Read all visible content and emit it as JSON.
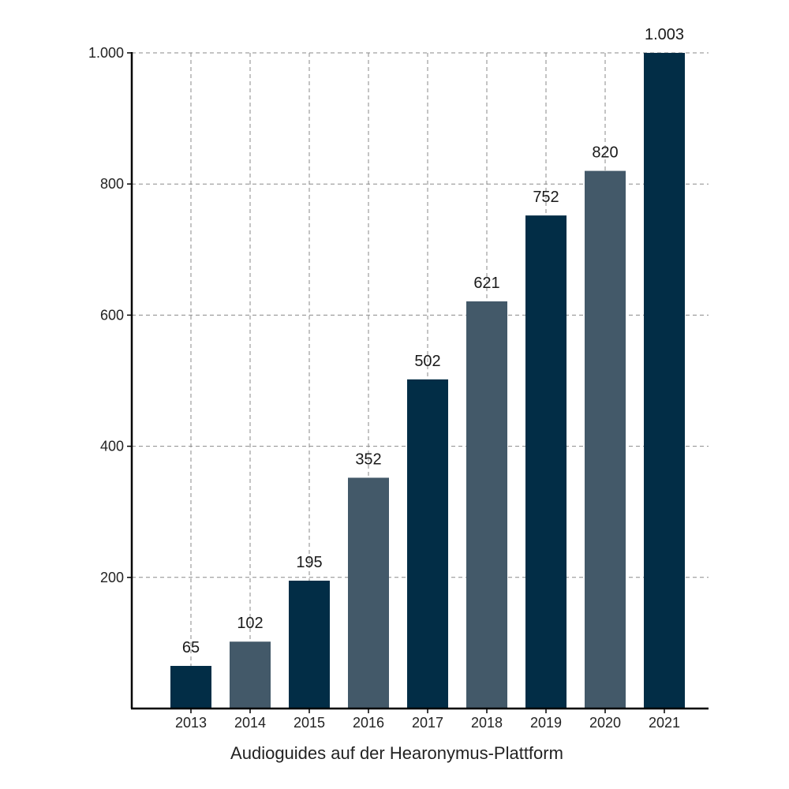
{
  "chart_data": {
    "type": "bar",
    "categories": [
      "2013",
      "2014",
      "2015",
      "2016",
      "2017",
      "2018",
      "2019",
      "2020",
      "2021"
    ],
    "values": [
      65,
      102,
      195,
      352,
      502,
      621,
      752,
      820,
      1003
    ],
    "value_labels": [
      "65",
      "102",
      "195",
      "352",
      "502",
      "621",
      "752",
      "820",
      "1.003"
    ],
    "xlabel": "Audioguides auf der Hearonymus-Plattform",
    "ylabel": "",
    "ylim": [
      0,
      1000
    ],
    "yticks": [
      200,
      400,
      600,
      800,
      1000
    ],
    "ytick_labels": [
      "200",
      "400",
      "600",
      "800",
      "1.000"
    ],
    "grid": true,
    "bar_colors": [
      "#022d46",
      "#435969",
      "#022d46",
      "#435969",
      "#022d46",
      "#435969",
      "#022d46",
      "#435969",
      "#022d46"
    ]
  }
}
